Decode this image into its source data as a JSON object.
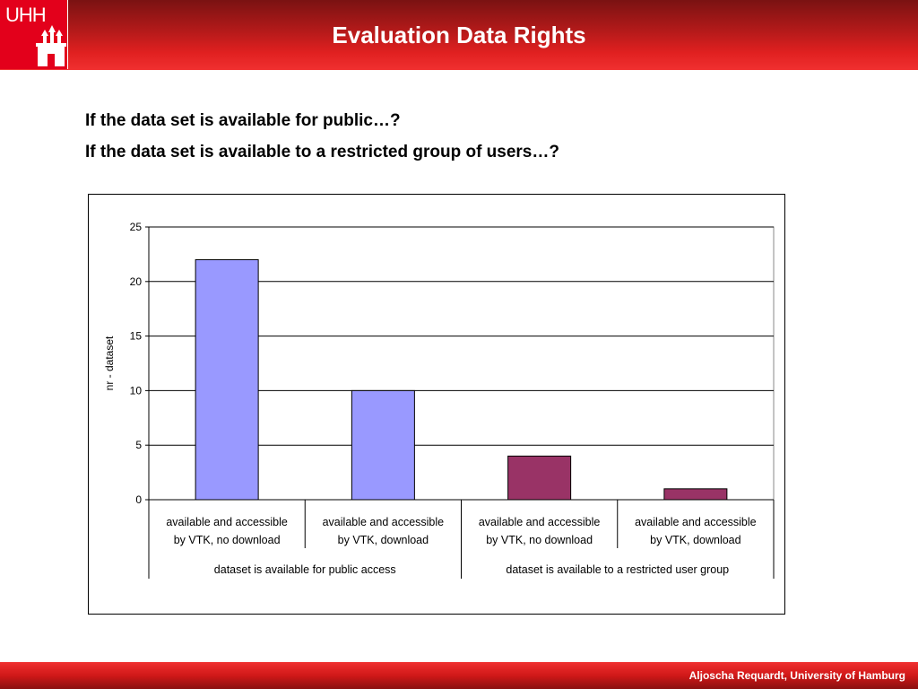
{
  "header": {
    "title": "Evaluation Data Rights",
    "logo_text": "UHH"
  },
  "questions": [
    "If the data set is available for public…?",
    "If the data set is available to a restricted group of users…?"
  ],
  "footer": {
    "text": "Aljoscha Requardt, University of Hamburg"
  },
  "colors": {
    "public": "#9999ff",
    "restricted": "#993366"
  },
  "chart_data": {
    "type": "bar",
    "ylabel": "nr - dataset",
    "ylim": [
      0,
      25
    ],
    "yticks": [
      0,
      5,
      10,
      15,
      20,
      25
    ],
    "grid": true,
    "categories": [
      {
        "line1": "available and accessible",
        "line2": "by VTK, no download",
        "group": 0,
        "value": 22,
        "color_key": "public"
      },
      {
        "line1": "available and accessible",
        "line2": "by VTK, download",
        "group": 0,
        "value": 10,
        "color_key": "public"
      },
      {
        "line1": "available and accessible",
        "line2": "by VTK, no download",
        "group": 1,
        "value": 4,
        "color_key": "restricted"
      },
      {
        "line1": "available and accessible",
        "line2": "by VTK, download",
        "group": 1,
        "value": 1,
        "color_key": "restricted"
      }
    ],
    "groups": [
      "dataset is available for public access",
      "dataset is available to a restricted user group"
    ]
  }
}
